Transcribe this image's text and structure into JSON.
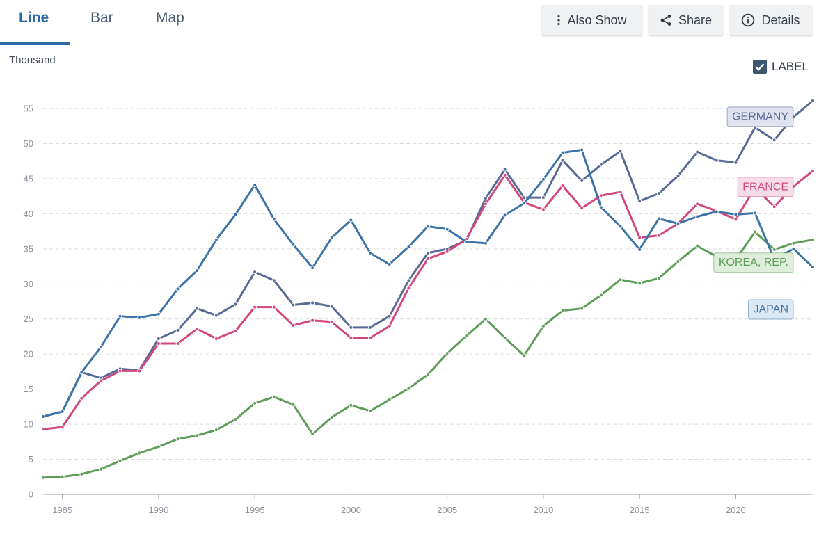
{
  "tabs": [
    {
      "label": "Line",
      "active": true
    },
    {
      "label": "Bar",
      "active": false
    },
    {
      "label": "Map",
      "active": false
    }
  ],
  "toolbar": {
    "also_show": "Also Show",
    "share": "Share",
    "details": "Details"
  },
  "label_toggle": {
    "text": "LABEL",
    "checked": true
  },
  "chart_data": {
    "type": "line",
    "ylabel": "Thousand",
    "ylim": [
      0,
      55
    ],
    "yticks": [
      0,
      5,
      10,
      15,
      20,
      25,
      30,
      35,
      40,
      45,
      50,
      55
    ],
    "xlim": [
      1984,
      2024
    ],
    "xticks": [
      1985,
      1990,
      1995,
      2000,
      2005,
      2010,
      2015,
      2020
    ],
    "grid": true,
    "x": [
      1984,
      1985,
      1986,
      1987,
      1988,
      1989,
      1990,
      1991,
      1992,
      1993,
      1994,
      1995,
      1996,
      1997,
      1998,
      1999,
      2000,
      2001,
      2002,
      2003,
      2004,
      2005,
      2006,
      2007,
      2008,
      2009,
      2010,
      2011,
      2012,
      2013,
      2014,
      2015,
      2016,
      2017,
      2018,
      2019,
      2020,
      2021,
      2022,
      2023,
      2024
    ],
    "series": [
      {
        "name": "GERMANY",
        "color": "#5a6a96",
        "label_bg": "#e0e2f0",
        "values": [
          11.1,
          11.8,
          17.4,
          16.6,
          17.9,
          17.7,
          22.2,
          23.4,
          26.5,
          25.5,
          27.1,
          31.7,
          30.5,
          27.0,
          27.3,
          26.8,
          23.8,
          23.8,
          25.4,
          30.5,
          34.4,
          35.0,
          36.2,
          42.2,
          46.3,
          42.3,
          42.3,
          47.6,
          44.7,
          47.0,
          48.9,
          41.8,
          42.9,
          45.4,
          48.8,
          47.6,
          47.3,
          52.3,
          50.5,
          53.8,
          56.1
        ]
      },
      {
        "name": "FRANCE",
        "color": "#d1477e",
        "label_bg": "#f6dce7",
        "values": [
          9.3,
          9.6,
          13.7,
          16.2,
          17.6,
          17.6,
          21.5,
          21.5,
          23.6,
          22.2,
          23.3,
          26.7,
          26.7,
          24.1,
          24.8,
          24.6,
          22.3,
          22.3,
          24.0,
          29.4,
          33.6,
          34.6,
          36.4,
          41.4,
          45.5,
          41.6,
          40.6,
          44.0,
          40.8,
          42.6,
          43.1,
          36.6,
          36.9,
          38.6,
          41.4,
          40.4,
          39.2,
          43.7,
          41.0,
          43.9,
          46.1
        ]
      },
      {
        "name": "KOREA, REP.",
        "color": "#5f9c5a",
        "label_bg": "#deeedb",
        "values": [
          2.4,
          2.5,
          2.9,
          3.6,
          4.8,
          5.9,
          6.8,
          7.9,
          8.4,
          9.2,
          10.7,
          13.0,
          13.9,
          12.8,
          8.6,
          11.0,
          12.7,
          11.9,
          13.5,
          15.1,
          17.1,
          20.1,
          22.6,
          25.0,
          22.3,
          19.8,
          24.0,
          26.2,
          26.5,
          28.4,
          30.6,
          30.1,
          30.8,
          33.2,
          35.4,
          33.9,
          33.5,
          37.4,
          34.9,
          35.8,
          36.3
        ]
      },
      {
        "name": "JAPAN",
        "color": "#3e73a6",
        "label_bg": "#dce8f4",
        "values": [
          11.1,
          11.8,
          17.4,
          21.0,
          25.4,
          25.2,
          25.7,
          29.3,
          31.9,
          36.3,
          39.9,
          44.1,
          39.2,
          35.6,
          32.3,
          36.6,
          39.1,
          34.4,
          32.8,
          35.3,
          38.2,
          37.8,
          36.0,
          35.8,
          39.8,
          41.5,
          44.9,
          48.7,
          49.1,
          40.9,
          38.2,
          34.9,
          39.3,
          38.6,
          39.6,
          40.3,
          39.9,
          40.1,
          33.5,
          35.0,
          32.4
        ]
      }
    ]
  },
  "icons": {
    "also_show": "vertical-dots-icon",
    "share": "share-icon",
    "details": "info-circle-icon",
    "label_toggle": "checkmark-icon"
  }
}
